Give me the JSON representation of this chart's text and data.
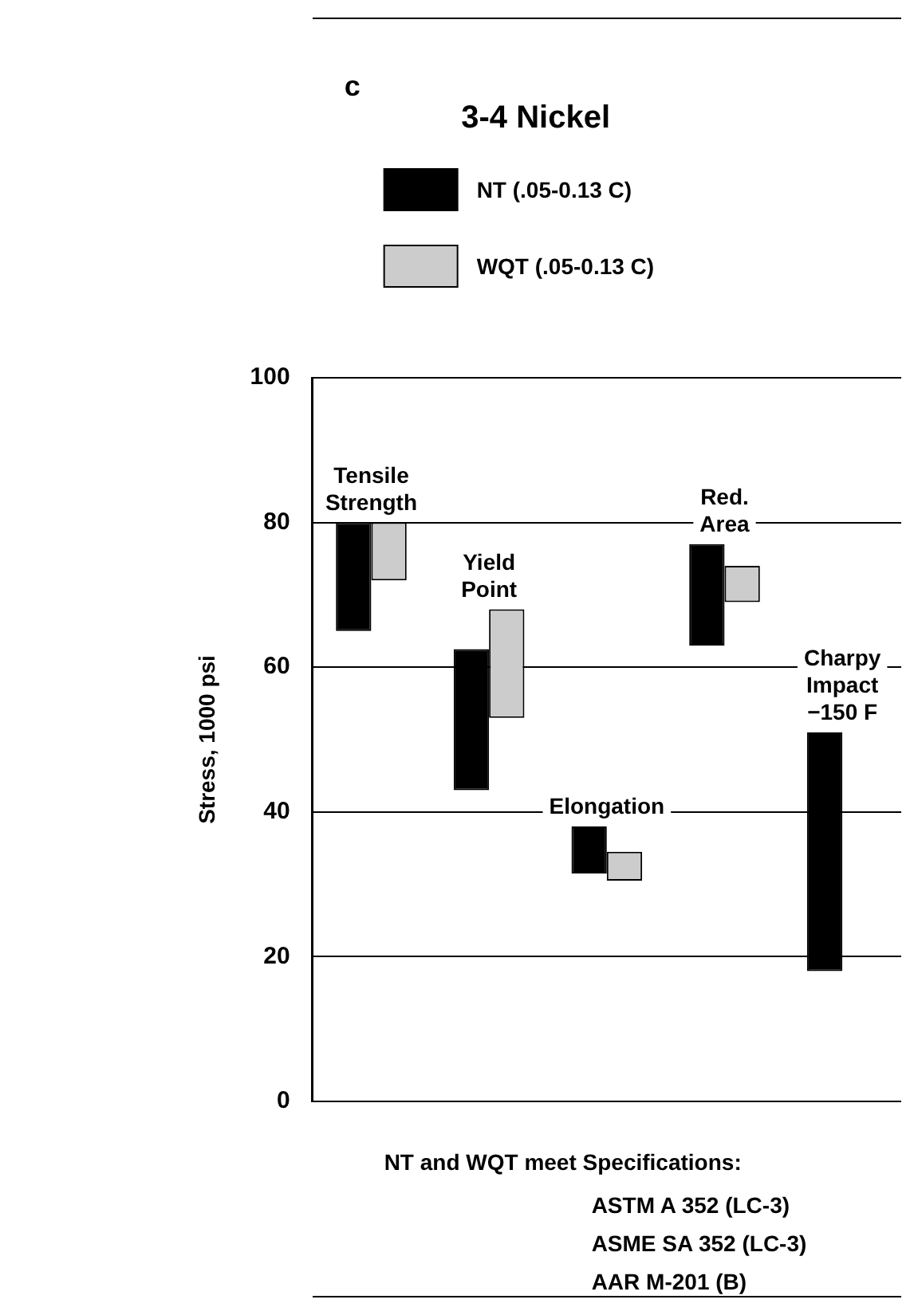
{
  "chart_data": {
    "type": "bar",
    "title": "3-4 Nickel",
    "ylabel": "Stress, 1000 psi",
    "categories": [
      "Tensile Strength",
      "Yield Point",
      "Elongation",
      "Red. Area",
      "Charpy Impact −150 F"
    ],
    "series": [
      {
        "name": "NT (.05-0.13 C)",
        "color": "#000000",
        "base": [
          65,
          43,
          31.5,
          63,
          18
        ],
        "values": [
          15,
          19.5,
          6.5,
          14,
          33
        ]
      },
      {
        "name": "WQT (.05-0.13 C)",
        "color": "#cccccc",
        "base": [
          72,
          53,
          30.5,
          69,
          null
        ],
        "values": [
          8,
          15,
          4,
          5,
          null
        ]
      }
    ],
    "ylim": [
      0,
      100
    ],
    "yticks": [
      0,
      20,
      40,
      60,
      80,
      100
    ],
    "grid": "y",
    "legend": "top",
    "tick_labels": "y",
    "annotations": [
      "c",
      "NT and WQT meet Specifications:",
      "ASTM A 352 (LC-3)",
      "ASME SA 352 (LC-3)",
      "AAR M-201 (B)"
    ]
  }
}
